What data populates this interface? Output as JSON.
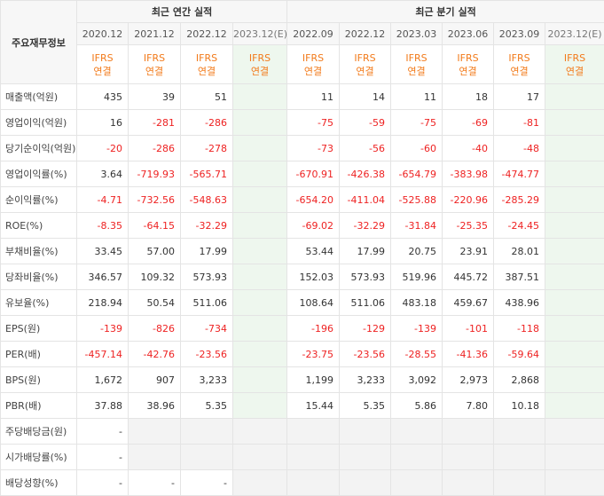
{
  "header": {
    "row_label": "주요재무정보",
    "annual_title": "최근 연간 실적",
    "quarter_title": "최근 분기 실적",
    "annual_periods": [
      "2020.12",
      "2021.12",
      "2022.12",
      "2023.12(E)"
    ],
    "quarter_periods": [
      "2022.09",
      "2022.12",
      "2023.03",
      "2023.06",
      "2023.09",
      "2023.12(E)"
    ],
    "ifrs_top": "IFRS",
    "ifrs_bottom": "연결"
  },
  "rows": [
    {
      "label": "매출액(억원)",
      "annual": [
        "435",
        "39",
        "51",
        ""
      ],
      "quarter": [
        "11",
        "14",
        "11",
        "18",
        "17",
        ""
      ]
    },
    {
      "label": "영업이익(억원)",
      "annual": [
        "16",
        "-281",
        "-286",
        ""
      ],
      "quarter": [
        "-75",
        "-59",
        "-75",
        "-69",
        "-81",
        ""
      ]
    },
    {
      "label": "당기순이익(억원)",
      "annual": [
        "-20",
        "-286",
        "-278",
        ""
      ],
      "quarter": [
        "-73",
        "-56",
        "-60",
        "-40",
        "-48",
        ""
      ]
    },
    {
      "label": "영업이익률(%)",
      "annual": [
        "3.64",
        "-719.93",
        "-565.71",
        ""
      ],
      "quarter": [
        "-670.91",
        "-426.38",
        "-654.79",
        "-383.98",
        "-474.77",
        ""
      ]
    },
    {
      "label": "순이익률(%)",
      "annual": [
        "-4.71",
        "-732.56",
        "-548.63",
        ""
      ],
      "quarter": [
        "-654.20",
        "-411.04",
        "-525.88",
        "-220.96",
        "-285.29",
        ""
      ]
    },
    {
      "label": "ROE(%)",
      "annual": [
        "-8.35",
        "-64.15",
        "-32.29",
        ""
      ],
      "quarter": [
        "-69.02",
        "-32.29",
        "-31.84",
        "-25.35",
        "-24.45",
        ""
      ]
    },
    {
      "label": "부채비율(%)",
      "annual": [
        "33.45",
        "57.00",
        "17.99",
        ""
      ],
      "quarter": [
        "53.44",
        "17.99",
        "20.75",
        "23.91",
        "28.01",
        ""
      ]
    },
    {
      "label": "당좌비율(%)",
      "annual": [
        "346.57",
        "109.32",
        "573.93",
        ""
      ],
      "quarter": [
        "152.03",
        "573.93",
        "519.96",
        "445.72",
        "387.51",
        ""
      ]
    },
    {
      "label": "유보율(%)",
      "annual": [
        "218.94",
        "50.54",
        "511.06",
        ""
      ],
      "quarter": [
        "108.64",
        "511.06",
        "483.18",
        "459.67",
        "438.96",
        ""
      ]
    },
    {
      "label": "EPS(원)",
      "annual": [
        "-139",
        "-826",
        "-734",
        ""
      ],
      "quarter": [
        "-196",
        "-129",
        "-139",
        "-101",
        "-118",
        ""
      ]
    },
    {
      "label": "PER(배)",
      "annual": [
        "-457.14",
        "-42.76",
        "-23.56",
        ""
      ],
      "quarter": [
        "-23.75",
        "-23.56",
        "-28.55",
        "-41.36",
        "-59.64",
        ""
      ]
    },
    {
      "label": "BPS(원)",
      "annual": [
        "1,672",
        "907",
        "3,233",
        ""
      ],
      "quarter": [
        "1,199",
        "3,233",
        "3,092",
        "2,973",
        "2,868",
        ""
      ]
    },
    {
      "label": "PBR(배)",
      "annual": [
        "37.88",
        "38.96",
        "5.35",
        ""
      ],
      "quarter": [
        "15.44",
        "5.35",
        "5.86",
        "7.80",
        "10.18",
        ""
      ]
    },
    {
      "label": "주당배당금(원)",
      "annual": [
        "-",
        "",
        "",
        ""
      ],
      "quarter": [
        "",
        "",
        "",
        "",
        "",
        ""
      ]
    },
    {
      "label": "시가배당률(%)",
      "annual": [
        "-",
        "",
        "",
        ""
      ],
      "quarter": [
        "",
        "",
        "",
        "",
        "",
        ""
      ]
    },
    {
      "label": "배당성향(%)",
      "annual": [
        "-",
        "-",
        "-",
        ""
      ],
      "quarter": [
        "",
        "",
        "",
        "",
        "",
        ""
      ]
    }
  ],
  "colors": {
    "negative": "#ee2222",
    "ifrs": "#f27a1a",
    "estimate_bg": "#eef7ee"
  }
}
